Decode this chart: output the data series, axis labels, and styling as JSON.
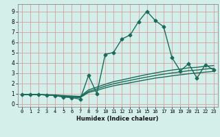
{
  "title": "",
  "xlabel": "Humidex (Indice chaleur)",
  "ylabel": "",
  "bg_color": "#d4eeea",
  "grid_color": "#d4a0a0",
  "line_color": "#1a6b5a",
  "xlim": [
    -0.5,
    23.5
  ],
  "ylim": [
    -0.3,
    9.7
  ],
  "xticks": [
    0,
    1,
    2,
    3,
    4,
    5,
    6,
    7,
    8,
    9,
    10,
    11,
    12,
    13,
    14,
    15,
    16,
    17,
    18,
    19,
    20,
    21,
    22,
    23
  ],
  "yticks": [
    0,
    1,
    2,
    3,
    4,
    5,
    6,
    7,
    8,
    9
  ],
  "line1_x": [
    0,
    1,
    2,
    3,
    4,
    5,
    6,
    7,
    8,
    9,
    10,
    11,
    12,
    13,
    14,
    15,
    16,
    17,
    18,
    19,
    20,
    21,
    22,
    23
  ],
  "line1_y": [
    0.9,
    0.9,
    0.9,
    0.85,
    0.8,
    0.65,
    0.6,
    0.45,
    2.75,
    1.0,
    4.8,
    5.0,
    6.3,
    6.7,
    8.0,
    9.0,
    8.1,
    7.5,
    4.5,
    3.2,
    3.9,
    2.5,
    3.8,
    3.3
  ],
  "line2_x": [
    0,
    1,
    2,
    3,
    4,
    5,
    6,
    7,
    8,
    9,
    10,
    11,
    12,
    13,
    14,
    15,
    16,
    17,
    18,
    19,
    20,
    21,
    22,
    23
  ],
  "line2_y": [
    0.9,
    0.9,
    0.9,
    0.85,
    0.8,
    0.72,
    0.65,
    0.6,
    1.1,
    1.3,
    1.55,
    1.75,
    1.9,
    2.05,
    2.2,
    2.35,
    2.5,
    2.6,
    2.72,
    2.82,
    2.92,
    3.0,
    3.08,
    3.15
  ],
  "line3_x": [
    0,
    1,
    2,
    3,
    4,
    5,
    6,
    7,
    8,
    9,
    10,
    11,
    12,
    13,
    14,
    15,
    16,
    17,
    18,
    19,
    20,
    21,
    22,
    23
  ],
  "line3_y": [
    0.9,
    0.9,
    0.9,
    0.85,
    0.82,
    0.75,
    0.7,
    0.65,
    1.2,
    1.45,
    1.72,
    1.95,
    2.12,
    2.28,
    2.45,
    2.6,
    2.75,
    2.88,
    3.0,
    3.1,
    3.22,
    3.28,
    3.38,
    3.45
  ],
  "line4_x": [
    0,
    1,
    2,
    3,
    4,
    5,
    6,
    7,
    8,
    9,
    10,
    11,
    12,
    13,
    14,
    15,
    16,
    17,
    18,
    19,
    20,
    21,
    22,
    23
  ],
  "line4_y": [
    0.9,
    0.9,
    0.9,
    0.88,
    0.85,
    0.8,
    0.76,
    0.72,
    1.35,
    1.62,
    1.9,
    2.15,
    2.32,
    2.5,
    2.68,
    2.85,
    3.0,
    3.15,
    3.28,
    3.38,
    3.5,
    3.55,
    3.65,
    3.72
  ],
  "marker_size": 2.5,
  "linewidth": 1.0
}
